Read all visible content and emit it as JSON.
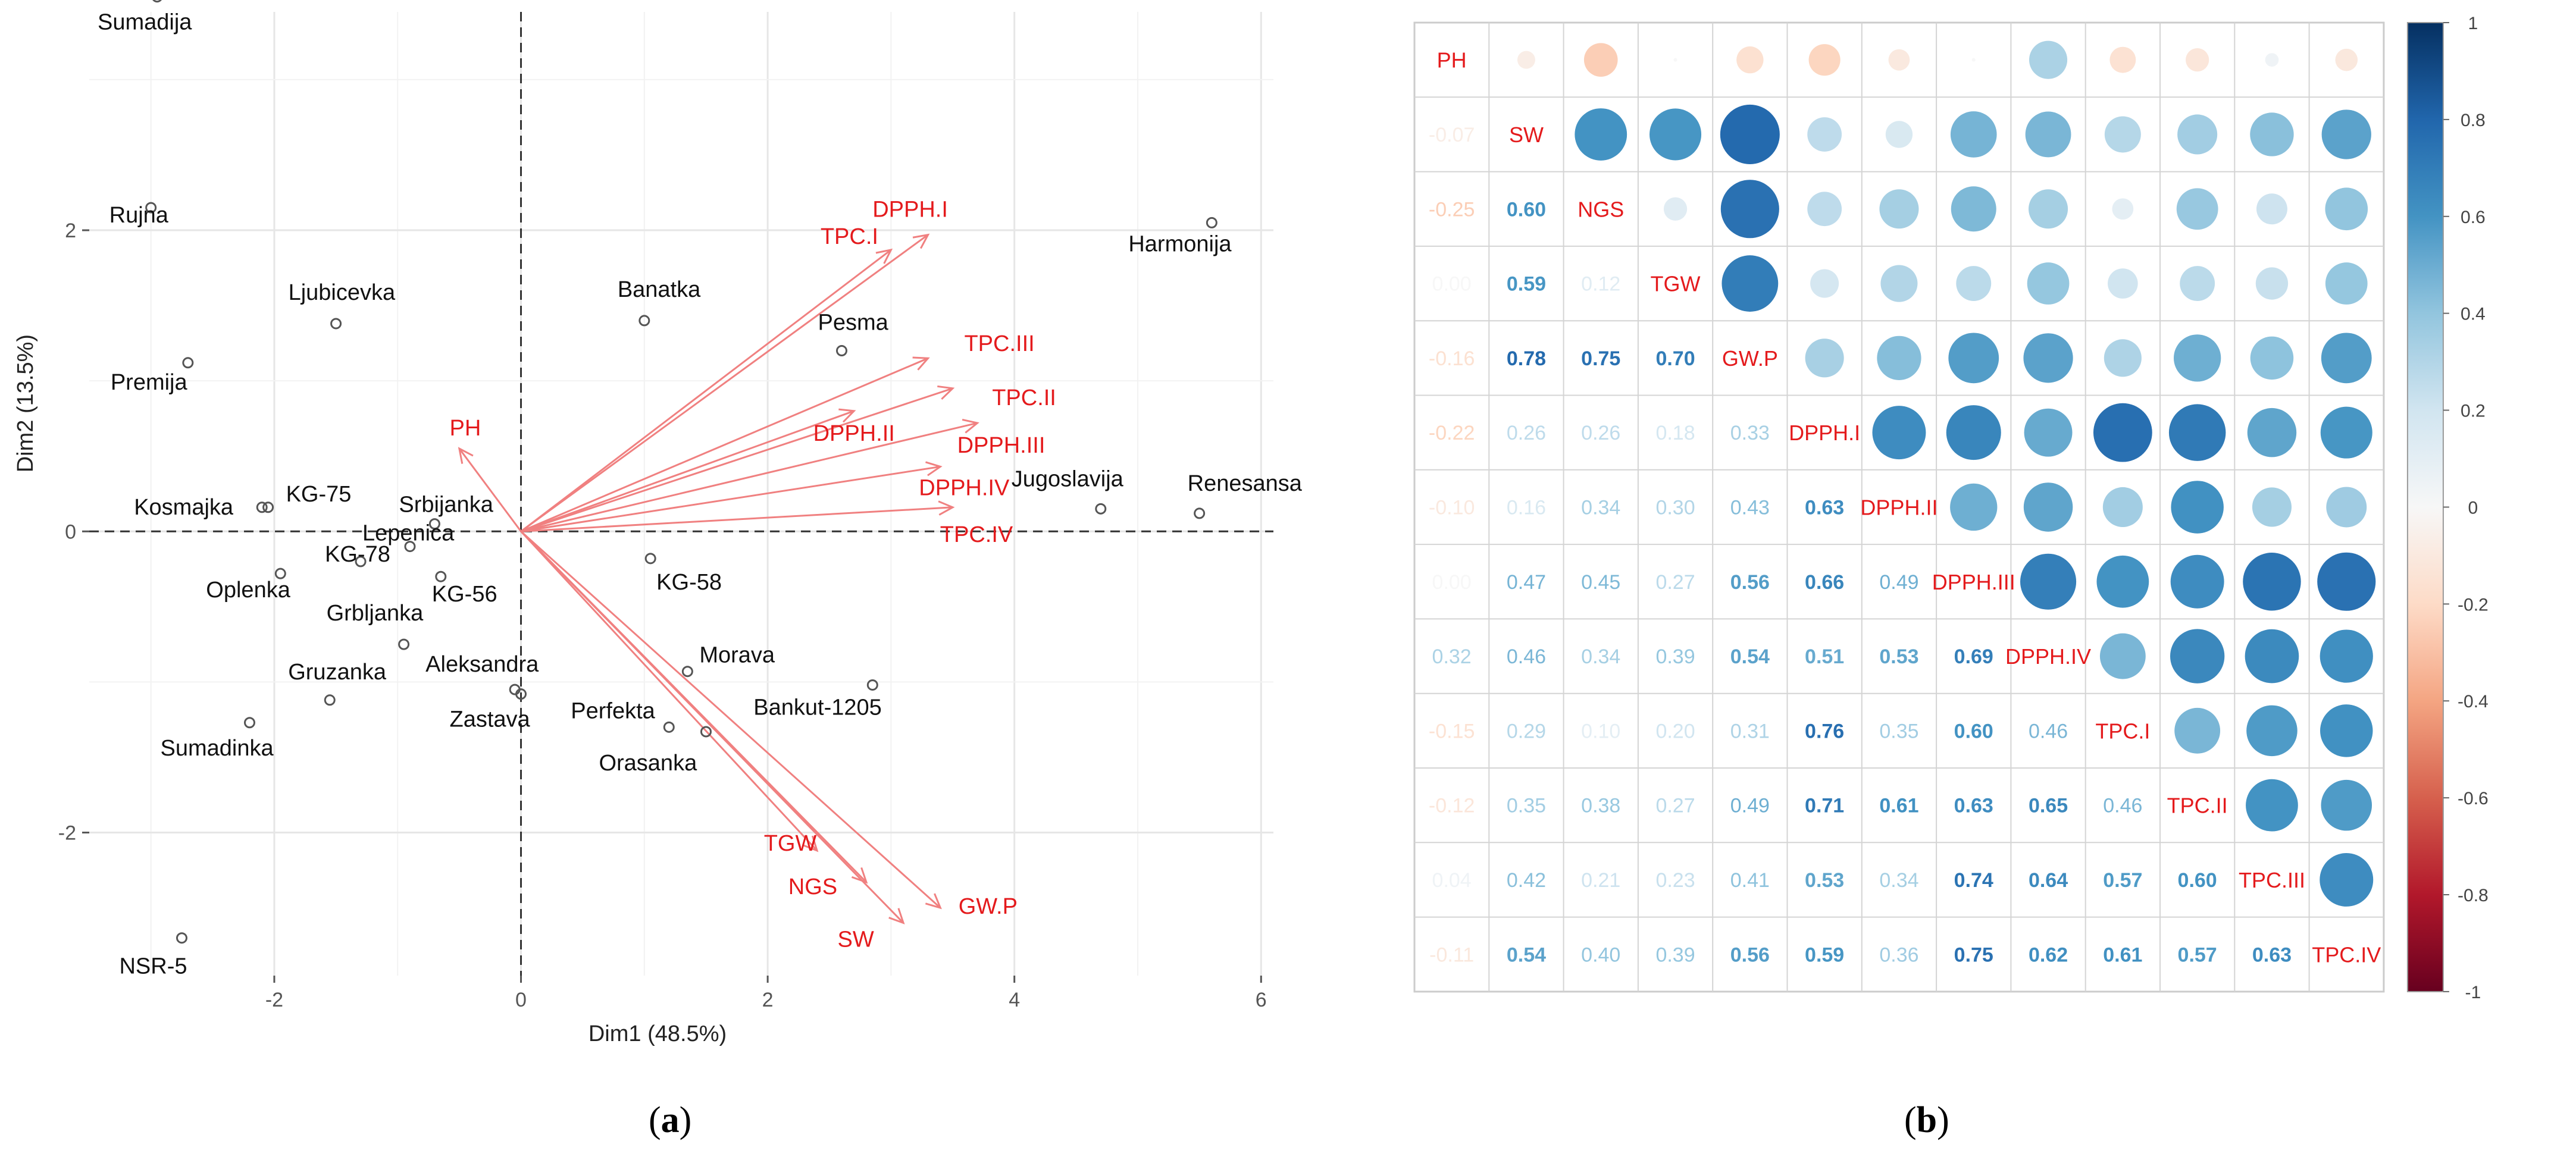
{
  "panels": {
    "a": "a",
    "b": "b"
  },
  "chart_data": [
    {
      "type": "scatter",
      "title": "",
      "xlabel": "Dim1 (48.5%)",
      "ylabel": "Dim2 (13.5%)",
      "xlim": [
        -3.5,
        6.1
      ],
      "ylim": [
        -2.95,
        3.45
      ],
      "xticks": [
        "-2",
        "0",
        "2",
        "4",
        "6"
      ],
      "yticks": [
        "-2",
        "0",
        "2"
      ],
      "grid": true,
      "zero_lines": "dashed",
      "points": [
        {
          "name": "Sumadija",
          "x": -2.95,
          "y": 3.55
        },
        {
          "name": "Rujna",
          "x": -3.0,
          "y": 2.15
        },
        {
          "name": "Ljubicevka",
          "x": -1.5,
          "y": 1.38
        },
        {
          "name": "Premija",
          "x": -2.7,
          "y": 1.12
        },
        {
          "name": "Kosmajka",
          "x": -2.1,
          "y": 0.16
        },
        {
          "name": "KG-75",
          "x": -2.05,
          "y": 0.16
        },
        {
          "name": "KG-78",
          "x": -1.3,
          "y": -0.2
        },
        {
          "name": "Srbijanka",
          "x": -0.7,
          "y": 0.05
        },
        {
          "name": "Lepenica",
          "x": -0.9,
          "y": -0.1
        },
        {
          "name": "Oplenka",
          "x": -1.95,
          "y": -0.28
        },
        {
          "name": "KG-56",
          "x": -0.65,
          "y": -0.3
        },
        {
          "name": "Grbljanka",
          "x": -0.95,
          "y": -0.75
        },
        {
          "name": "Aleksandra",
          "x": -0.05,
          "y": -1.05
        },
        {
          "name": "Zastava",
          "x": 0.0,
          "y": -1.08
        },
        {
          "name": "Gruzanka",
          "x": -1.55,
          "y": -1.12
        },
        {
          "name": "Sumadinka",
          "x": -2.2,
          "y": -1.27
        },
        {
          "name": "NSR-5",
          "x": -2.75,
          "y": -2.7
        },
        {
          "name": "Banatka",
          "x": 1.0,
          "y": 1.4
        },
        {
          "name": "Pesma",
          "x": 2.6,
          "y": 1.2
        },
        {
          "name": "Harmonija",
          "x": 5.6,
          "y": 2.05
        },
        {
          "name": "Jugoslavija",
          "x": 4.7,
          "y": 0.15
        },
        {
          "name": "Renesansa",
          "x": 5.5,
          "y": 0.12
        },
        {
          "name": "KG-58",
          "x": 1.05,
          "y": -0.18
        },
        {
          "name": "Morava",
          "x": 1.35,
          "y": -0.93
        },
        {
          "name": "Bankut-1205",
          "x": 2.85,
          "y": -1.02
        },
        {
          "name": "Perfekta",
          "x": 1.2,
          "y": -1.3
        },
        {
          "name": "Orasanka",
          "x": 1.5,
          "y": -1.33
        }
      ],
      "vectors": [
        {
          "name": "PH",
          "x": -0.5,
          "y": 0.55
        },
        {
          "name": "TPC.I",
          "x": 3.0,
          "y": 1.87
        },
        {
          "name": "DPPH.I",
          "x": 3.3,
          "y": 1.97
        },
        {
          "name": "TPC.III",
          "x": 3.3,
          "y": 1.15
        },
        {
          "name": "TPC.II",
          "x": 3.5,
          "y": 0.95
        },
        {
          "name": "DPPH.II",
          "x": 2.7,
          "y": 0.8
        },
        {
          "name": "DPPH.III",
          "x": 3.7,
          "y": 0.72
        },
        {
          "name": "DPPH.IV",
          "x": 3.4,
          "y": 0.43
        },
        {
          "name": "TPC.IV",
          "x": 3.5,
          "y": 0.16
        },
        {
          "name": "TGW",
          "x": 2.4,
          "y": -2.12
        },
        {
          "name": "NGS",
          "x": 2.8,
          "y": -2.33
        },
        {
          "name": "SW",
          "x": 3.1,
          "y": -2.6
        },
        {
          "name": "GW.P",
          "x": 3.4,
          "y": -2.5
        }
      ]
    },
    {
      "type": "heatmap",
      "title": "",
      "variables": [
        "PH",
        "SW",
        "NGS",
        "TGW",
        "GW.P",
        "DPPH.I",
        "DPPH.II",
        "DPPH.III",
        "DPPH.IV",
        "TPC.I",
        "TPC.II",
        "TPC.III",
        "TPC.IV"
      ],
      "matrix": [
        [
          1,
          -0.07,
          -0.25,
          0.0,
          -0.16,
          -0.22,
          -0.1,
          0.0,
          0.32,
          -0.15,
          -0.12,
          0.04,
          -0.11
        ],
        [
          -0.07,
          1,
          0.6,
          0.59,
          0.78,
          0.26,
          0.16,
          0.47,
          0.46,
          0.29,
          0.35,
          0.42,
          0.54
        ],
        [
          -0.25,
          0.6,
          1,
          0.12,
          0.75,
          0.26,
          0.34,
          0.45,
          0.34,
          0.1,
          0.38,
          0.21,
          0.4
        ],
        [
          0.0,
          0.59,
          0.12,
          1,
          0.7,
          0.18,
          0.3,
          0.27,
          0.39,
          0.2,
          0.27,
          0.23,
          0.39
        ],
        [
          -0.16,
          0.78,
          0.75,
          0.7,
          1,
          0.33,
          0.43,
          0.56,
          0.54,
          0.31,
          0.49,
          0.41,
          0.56
        ],
        [
          -0.22,
          0.26,
          0.26,
          0.18,
          0.33,
          1,
          0.63,
          0.66,
          0.51,
          0.76,
          0.71,
          0.53,
          0.59
        ],
        [
          -0.1,
          0.16,
          0.34,
          0.3,
          0.43,
          0.63,
          1,
          0.49,
          0.53,
          0.35,
          0.61,
          0.34,
          0.36
        ],
        [
          0.0,
          0.47,
          0.45,
          0.27,
          0.56,
          0.66,
          0.49,
          1,
          0.69,
          0.6,
          0.63,
          0.74,
          0.75
        ],
        [
          0.32,
          0.46,
          0.34,
          0.39,
          0.54,
          0.51,
          0.53,
          0.69,
          1,
          0.46,
          0.65,
          0.64,
          0.62
        ],
        [
          -0.15,
          0.29,
          0.1,
          0.2,
          0.31,
          0.76,
          0.35,
          0.6,
          0.46,
          1,
          0.46,
          0.57,
          0.61
        ],
        [
          -0.12,
          0.35,
          0.38,
          0.27,
          0.49,
          0.71,
          0.61,
          0.63,
          0.65,
          0.46,
          1,
          0.6,
          0.57
        ],
        [
          0.04,
          0.42,
          0.21,
          0.23,
          0.41,
          0.53,
          0.34,
          0.74,
          0.64,
          0.57,
          0.6,
          1,
          0.63
        ],
        [
          -0.11,
          0.54,
          0.4,
          0.39,
          0.56,
          0.59,
          0.36,
          0.75,
          0.62,
          0.61,
          0.57,
          0.63,
          1
        ]
      ],
      "hidden_value_labels": [
        [
          0,
          3
        ],
        [
          0,
          7
        ]
      ],
      "lower_labels": {
        "1,0": "-0.07",
        "2,0": "-0.25",
        "4,0": "-0.16",
        "5,0": "-0.22",
        "6,0": "-0.10",
        "8,0": "0.32",
        "9,0": "-0.15",
        "10,0": "-0.12",
        "11,0": "0.04",
        "12,0": "-0.11"
      },
      "colorbar": {
        "range": [
          -1,
          1
        ],
        "ticks": [
          "1",
          "0.8",
          "0.6",
          "0.4",
          "0.2",
          "0",
          "-0.2",
          "-0.4",
          "-0.6",
          "-0.8",
          "-1"
        ],
        "low_color": "#67001f",
        "mid_color": "#f7f7f7",
        "high_color": "#053061"
      }
    }
  ],
  "colors": {
    "point": "#555555",
    "vector": "#f08080",
    "vector_label": "#e41a1c"
  }
}
